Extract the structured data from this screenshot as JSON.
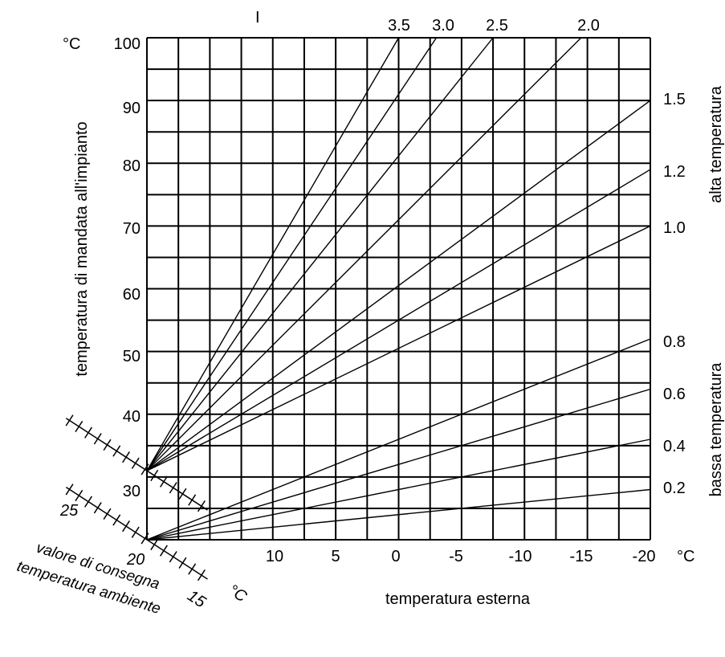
{
  "chart_data": {
    "type": "line",
    "title": "",
    "xlabel": "temperatura esterna",
    "ylabel": "temperatura di mandata all'impianto",
    "x_unit": "°C",
    "y_unit": "°C",
    "x_tick_labels": [
      "10",
      "5",
      "0",
      "-5",
      "-10",
      "-15",
      "-20"
    ],
    "y_tick_labels": [
      "30",
      "40",
      "50",
      "60",
      "70",
      "80",
      "90",
      "100"
    ],
    "xlim": [
      20,
      -20
    ],
    "ylim": [
      20,
      100
    ],
    "grid": true,
    "marker_I": "I",
    "curve_top_labels": [
      "3.5",
      "3.0",
      "2.5",
      "2.0"
    ],
    "curve_right_labels": [
      "1.5",
      "1.2",
      "1.0",
      "0.8",
      "0.6",
      "0.4",
      "0.2"
    ],
    "right_group_labels": {
      "high": "alta temperatura",
      "low": "bassa temperatura"
    },
    "setpoint_axis": {
      "label_line1": "valore di consegna",
      "label_line2": "temperatura ambiente",
      "unit": "°C",
      "tick_labels": [
        "25",
        "20",
        "15"
      ]
    },
    "series": [
      {
        "name": "3.5",
        "x": [
          20,
          0
        ],
        "y": [
          31,
          100
        ]
      },
      {
        "name": "3.0",
        "x": [
          20,
          -3
        ],
        "y": [
          31,
          100
        ]
      },
      {
        "name": "2.5",
        "x": [
          20,
          -7.5
        ],
        "y": [
          31,
          100
        ]
      },
      {
        "name": "2.0",
        "x": [
          20,
          -14.5
        ],
        "y": [
          31,
          100
        ]
      },
      {
        "name": "1.5",
        "x": [
          20,
          -20
        ],
        "y": [
          31,
          90
        ]
      },
      {
        "name": "1.2",
        "x": [
          20,
          -20
        ],
        "y": [
          31,
          79
        ]
      },
      {
        "name": "1.0",
        "x": [
          20,
          -20
        ],
        "y": [
          31,
          70
        ]
      },
      {
        "name": "0.8",
        "x": [
          20,
          -20
        ],
        "y": [
          20,
          52
        ]
      },
      {
        "name": "0.6",
        "x": [
          20,
          -20
        ],
        "y": [
          20,
          44
        ]
      },
      {
        "name": "0.4",
        "x": [
          20,
          -20
        ],
        "y": [
          20,
          36
        ]
      },
      {
        "name": "0.2",
        "x": [
          20,
          -20
        ],
        "y": [
          20,
          28
        ]
      }
    ]
  }
}
